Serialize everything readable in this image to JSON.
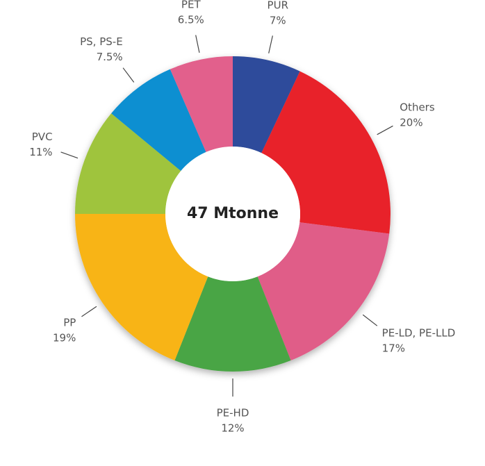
{
  "chart_data": {
    "type": "donut",
    "center_label": "47 Mtonne",
    "categories": [
      "PUR",
      "Others",
      "PE-LD, PE-LLD",
      "PE-HD",
      "PP",
      "PVC",
      "PS, PS-E",
      "PET"
    ],
    "values": [
      7,
      20,
      17,
      12,
      19,
      11,
      7.5,
      6.5
    ],
    "value_labels": [
      "7%",
      "20%",
      "17%",
      "12%",
      "19%",
      "11%",
      "7.5%",
      "6.5%"
    ],
    "colors": [
      "#2f4b9b",
      "#e8202a",
      "#e05d88",
      "#4aa545",
      "#f8b416",
      "#9fc43d",
      "#0b8fd1",
      "#e2618c"
    ]
  }
}
